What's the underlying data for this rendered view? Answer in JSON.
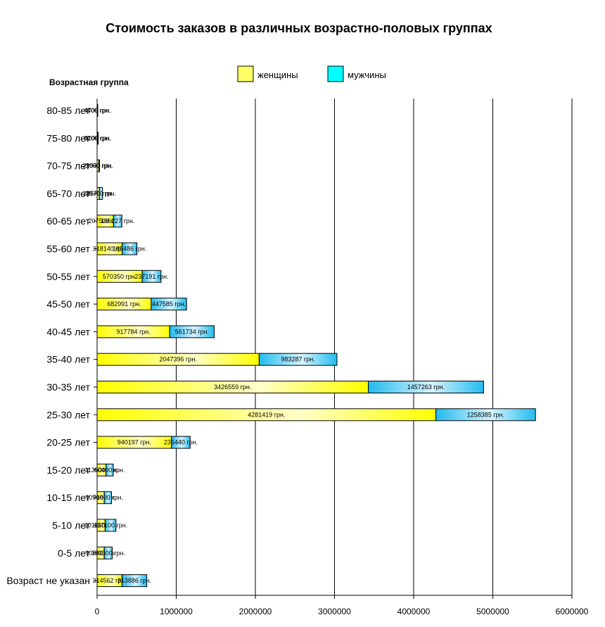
{
  "chart_data": {
    "type": "bar",
    "orientation": "horizontal",
    "stacked": true,
    "title": "Стоимость заказов в различных возрастно-половых группах",
    "ylabel": "Возрастная группа",
    "xlim": [
      0,
      6000000
    ],
    "x_ticks": [
      "0",
      "1000000",
      "2000000",
      "3000000",
      "4000000",
      "5000000",
      "6000000"
    ],
    "grid": "vertical",
    "legend_position": "top",
    "value_suffix": " грн.",
    "categories": [
      "80-85 лет",
      "75-80 лет",
      "70-75 лет",
      "65-70 лет",
      "60-65 лет",
      "55-60 лет",
      "50-55 лет",
      "45-50 лет",
      "40-45 лет",
      "35-40 лет",
      "30-35 лет",
      "25-30 лет",
      "20-25 лет",
      "15-20 лет",
      "10-15 лет",
      "5-10 лет",
      "0-5 лет",
      "Возраст не указан"
    ],
    "series": [
      {
        "name": "женщины",
        "color": "#ffff00",
        "values": [
          4400,
          6200,
          21930,
          28570,
          207500,
          318140,
          570350,
          682991,
          917784,
          2047396,
          3426559,
          4281419,
          940197,
          113500,
          90700,
          101160,
          90800,
          314562
        ]
      },
      {
        "name": "мужчины",
        "color": "#00ccff",
        "values": [
          4700,
          8100,
          9000,
          39700,
          106227,
          185486,
          237191,
          447585,
          561734,
          983287,
          1457263,
          1258385,
          235440,
          90400,
          91800,
          137100,
          100300,
          313886
        ]
      }
    ]
  }
}
